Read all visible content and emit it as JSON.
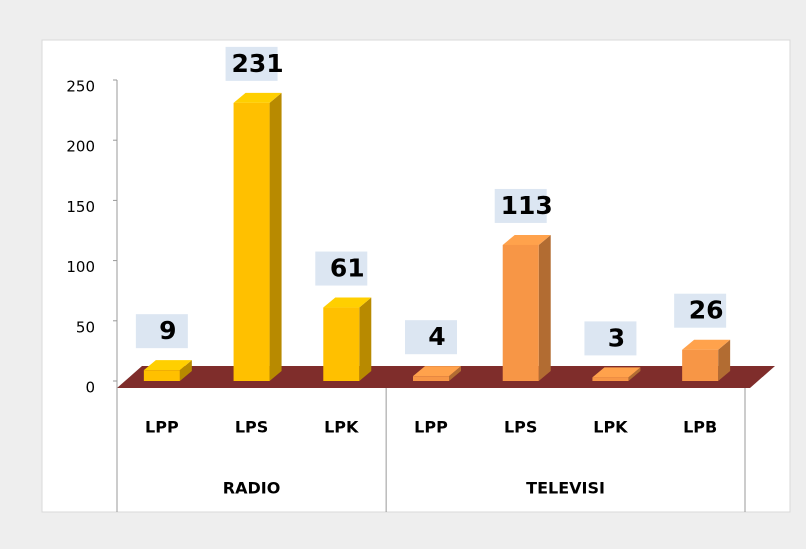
{
  "chart_data": {
    "type": "bar3d",
    "series": [
      {
        "name": "RADIO",
        "color": "#FFC000",
        "categories": [
          "LPP",
          "LPS",
          "LPK"
        ],
        "values": [
          9,
          231,
          61
        ]
      },
      {
        "name": "TELEVISI",
        "color": "#F79646",
        "categories": [
          "LPP",
          "LPS",
          "LPK",
          "LPB"
        ],
        "values": [
          4,
          113,
          3,
          26
        ]
      }
    ],
    "ylim": [
      0,
      250
    ],
    "yticks": [
      0,
      50,
      100,
      150,
      200,
      250
    ]
  }
}
